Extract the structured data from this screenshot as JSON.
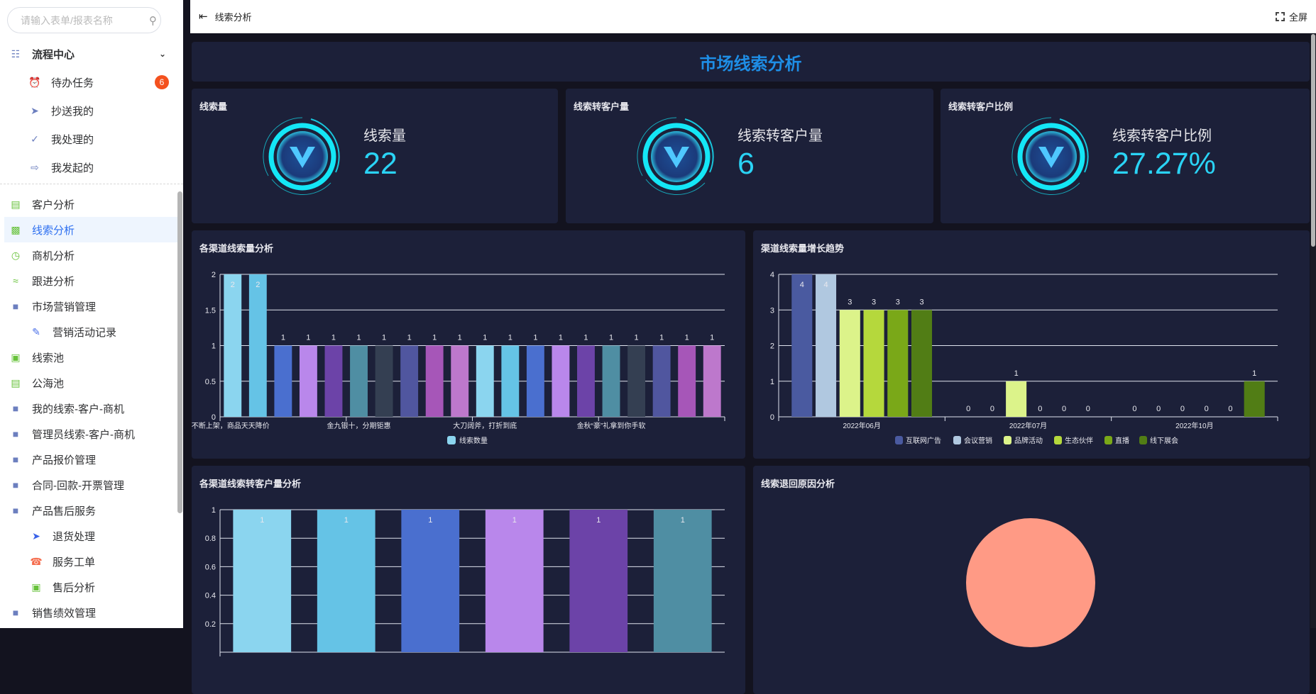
{
  "sidebar": {
    "search_placeholder": "请输入表单/报表名称",
    "group": {
      "label": "流程中心",
      "icon": "sitemap-icon"
    },
    "process_items": [
      {
        "label": "待办任务",
        "icon": "alarm-clock-icon",
        "badge": "6"
      },
      {
        "label": "抄送我的",
        "icon": "paper-plane-icon"
      },
      {
        "label": "我处理的",
        "icon": "check-circle-icon"
      },
      {
        "label": "我发起的",
        "icon": "document-export-icon"
      }
    ],
    "items": [
      {
        "label": "客户分析",
        "icon": "contact-card-icon",
        "level": 1,
        "color": "#67c23a"
      },
      {
        "label": "线索分析",
        "icon": "bar-chart-icon",
        "level": 1,
        "active": true,
        "color": "#67c23a"
      },
      {
        "label": "商机分析",
        "icon": "clock-icon",
        "level": 1,
        "color": "#67c23a"
      },
      {
        "label": "跟进分析",
        "icon": "line-chart-icon",
        "level": 1,
        "color": "#67c23a"
      },
      {
        "label": "市场营销管理",
        "icon": "folder-open-icon",
        "level": 1,
        "color": "#6c7fbf"
      },
      {
        "label": "营销活动记录",
        "icon": "edit-icon",
        "level": 2,
        "color": "#4a6fe8"
      },
      {
        "label": "线索池",
        "icon": "presentation-icon",
        "level": 1,
        "color": "#67c23a"
      },
      {
        "label": "公海池",
        "icon": "contact-card-icon",
        "level": 1,
        "color": "#67c23a"
      },
      {
        "label": "我的线索-客户-商机",
        "icon": "folder-icon",
        "level": 1,
        "color": "#6c7fbf"
      },
      {
        "label": "管理员线索-客户-商机",
        "icon": "folder-icon",
        "level": 1,
        "color": "#6c7fbf"
      },
      {
        "label": "产品报价管理",
        "icon": "folder-icon",
        "level": 1,
        "color": "#6c7fbf"
      },
      {
        "label": "合同-回款-开票管理",
        "icon": "folder-icon",
        "level": 1,
        "color": "#6c7fbf"
      },
      {
        "label": "产品售后服务",
        "icon": "folder-open-icon",
        "level": 1,
        "color": "#6c7fbf"
      },
      {
        "label": "退货处理",
        "icon": "paper-plane-icon",
        "level": 2,
        "color": "#3a62e8"
      },
      {
        "label": "服务工单",
        "icon": "phone-icon",
        "level": 2,
        "color": "#f56c4c"
      },
      {
        "label": "售后分析",
        "icon": "cart-icon",
        "level": 2,
        "color": "#67c23a"
      },
      {
        "label": "销售绩效管理",
        "icon": "folder-open-icon",
        "level": 1,
        "color": "#6c7fbf"
      }
    ]
  },
  "header": {
    "title": "线索分析",
    "fullscreen": "全屏"
  },
  "dashboard": {
    "title": "市场线索分析",
    "kpis": [
      {
        "card_title": "线索量",
        "label": "线索量",
        "value": "22"
      },
      {
        "card_title": "线索转客户量",
        "label": "线索转客户量",
        "value": "6"
      },
      {
        "card_title": "线索转客户比例",
        "label": "线索转客户比例",
        "value": "27.27%"
      }
    ]
  },
  "chart_data": [
    {
      "type": "bar",
      "title": "各渠道线索量分析",
      "categories": [
        "货不断上架，商品天天降价",
        "",
        "",
        "",
        "",
        "金九银十，分期钜惠",
        "",
        "",
        "",
        "",
        "大刀阔斧，打折到底",
        "",
        "",
        "",
        "",
        "金秋“豪”礼拿到你手软",
        "",
        "",
        "",
        ""
      ],
      "series": [
        {
          "name": "线索数量",
          "values": [
            2,
            2,
            1,
            1,
            1,
            1,
            1,
            1,
            1,
            1,
            1,
            1,
            1,
            1,
            1,
            1,
            1,
            1,
            1,
            1
          ]
        }
      ],
      "ylim": [
        0,
        2
      ],
      "yticks": [
        "0",
        "0.5",
        "1",
        "1.5",
        "2"
      ],
      "grid": true,
      "legend": "bottom",
      "colors": [
        "#8bd5ef",
        "#65c3e6",
        "#4a6fcf",
        "#b987eb",
        "#6c43a8",
        "#4f8ea3",
        "#343f52",
        "#50569f",
        "#a656b8",
        "#bd78cc"
      ]
    },
    {
      "type": "bar",
      "title": "渠道线索量增长趋势",
      "categories": [
        "2022年06月",
        "2022年07月",
        "2022年10月"
      ],
      "series": [
        {
          "name": "互联网广告",
          "values": [
            4,
            0,
            0
          ],
          "color": "#4a5aa0"
        },
        {
          "name": "会议营销",
          "values": [
            4,
            0,
            0
          ],
          "color": "#b0c8e0"
        },
        {
          "name": "品牌活动",
          "values": [
            3,
            1,
            0
          ],
          "color": "#dcf38a"
        },
        {
          "name": "生态伙伴",
          "values": [
            3,
            0,
            0
          ],
          "color": "#b5d83c"
        },
        {
          "name": "直播",
          "values": [
            3,
            0,
            0
          ],
          "color": "#7aa818"
        },
        {
          "name": "线下展会",
          "values": [
            3,
            0,
            1
          ],
          "color": "#517d15"
        }
      ],
      "ylim": [
        0,
        4
      ],
      "yticks": [
        "0",
        "1",
        "2",
        "3",
        "4"
      ],
      "grid": true,
      "legend": "bottom"
    },
    {
      "type": "bar",
      "title": "各渠道线索转客户量分析",
      "series": [
        {
          "values": [
            1,
            1,
            1,
            1,
            1,
            1
          ]
        }
      ],
      "ylim": [
        0,
        1
      ],
      "yticks": [
        "0.2",
        "0.4",
        "0.6",
        "0.8",
        "1"
      ],
      "grid": true,
      "colors": [
        "#8bd5ef",
        "#65c3e6",
        "#4a6fcf",
        "#b987eb",
        "#6c43a8",
        "#4f8ea3"
      ]
    },
    {
      "type": "pie",
      "title": "线索退回原因分析",
      "values": [
        1
      ],
      "colors": [
        "#ff9a85"
      ]
    }
  ]
}
